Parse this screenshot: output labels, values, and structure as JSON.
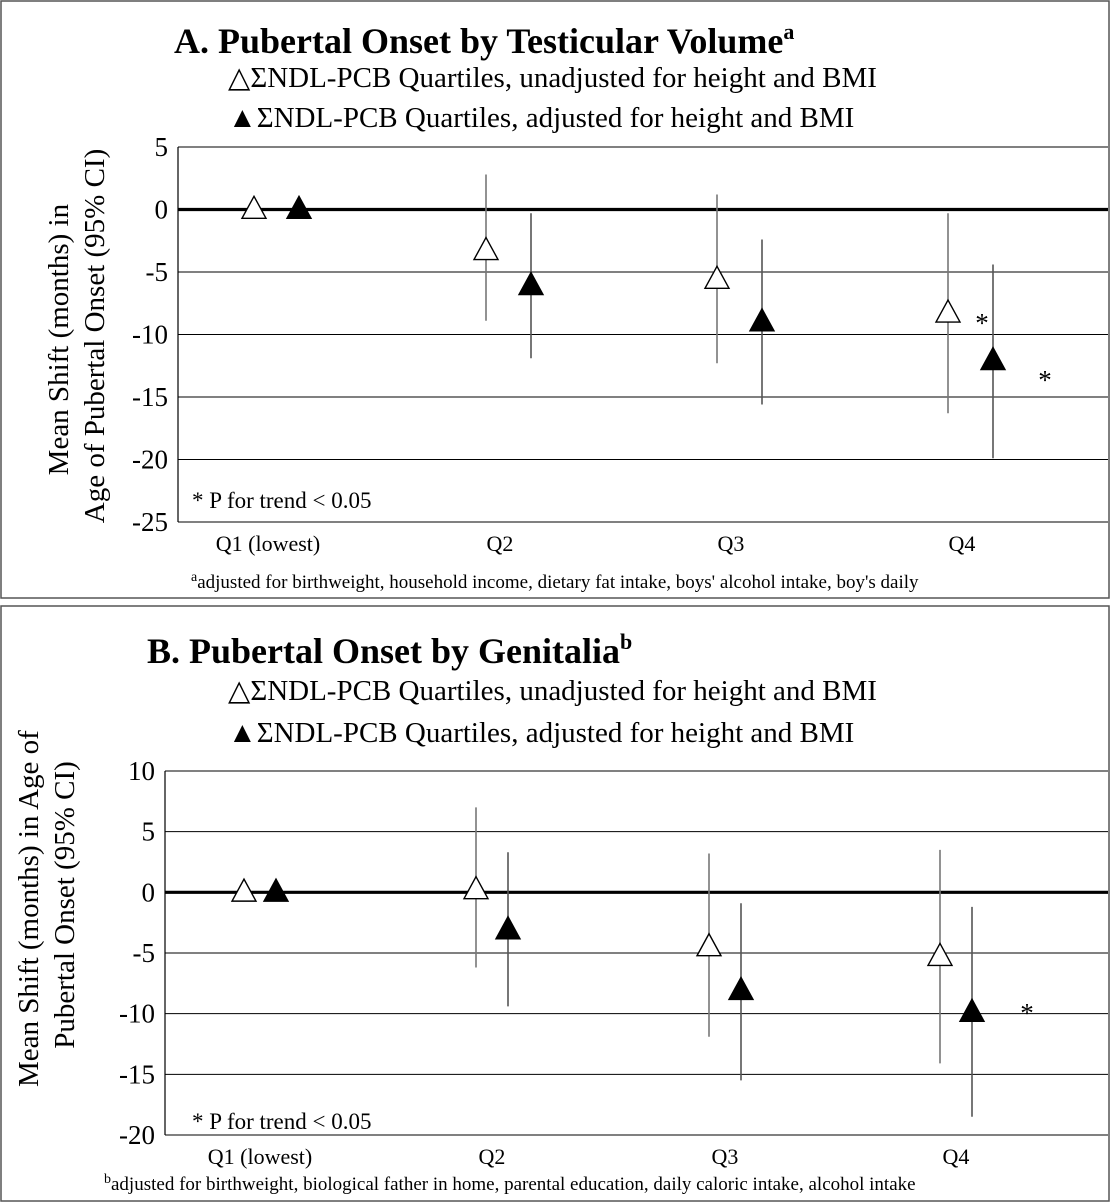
{
  "chart_data": [
    {
      "type": "scatter",
      "title": "A.  Pubertal Onset by Testicular Volume",
      "title_superscript": "a",
      "legend": [
        {
          "symbol": "△",
          "label": "ΣNDL-PCB Quartiles, unadjusted for height and BMI"
        },
        {
          "symbol": "▲",
          "label": "ΣNDL-PCB Quartiles, adjusted for height and BMI"
        }
      ],
      "ylabel_lines": [
        "Mean Shift (months) in",
        "Age of Pubertal Onset (95% CI)"
      ],
      "ylim": [
        -25,
        5
      ],
      "yticks": [
        5,
        0,
        -5,
        -10,
        -15,
        -20,
        -25
      ],
      "categories": [
        "Q1 (lowest)",
        "Q2",
        "Q3",
        "Q4"
      ],
      "series": [
        {
          "name": "ΣNDL-PCB Quartiles, unadjusted for height and BMI",
          "color": "#ffffff",
          "values": [
            0,
            -3.3,
            -5.6,
            -8.3
          ],
          "ci_low": [
            0,
            -8.9,
            -12.3,
            -16.3
          ],
          "ci_high": [
            0,
            2.8,
            1.2,
            -0.3
          ]
        },
        {
          "name": "ΣNDL-PCB Quartiles, adjusted for height and BMI",
          "color": "#000000",
          "values": [
            0,
            -6.1,
            -9.0,
            -12.1
          ],
          "ci_low": [
            0,
            -11.9,
            -15.6,
            -19.9
          ],
          "ci_high": [
            0,
            -0.3,
            -2.4,
            -4.4
          ]
        }
      ],
      "significance_marks": [
        {
          "category": "Q4",
          "series": 0,
          "text": "*"
        },
        {
          "category": "Q4",
          "series": 1,
          "text": "*"
        }
      ],
      "annotation": "* P for trend < 0.05",
      "footnote_superscript": "a",
      "footnote": "adjusted for birthweight, household income, dietary fat intake, boys' alcohol intake, boy's daily"
    },
    {
      "type": "scatter",
      "title": "B. Pubertal Onset by Genitalia",
      "title_superscript": "b",
      "legend": [
        {
          "symbol": "△",
          "label": "ΣNDL-PCB Quartiles, unadjusted for height and BMI"
        },
        {
          "symbol": "▲",
          "label": "ΣNDL-PCB Quartiles, adjusted for height and BMI"
        }
      ],
      "ylabel_lines": [
        "Mean Shift (months) in Age of",
        "Pubertal Onset (95% CI)"
      ],
      "ylim": [
        -20,
        10
      ],
      "yticks": [
        10,
        5,
        0,
        -5,
        -10,
        -15,
        -20
      ],
      "categories": [
        "Q1 (lowest)",
        "Q2",
        "Q3",
        "Q4"
      ],
      "series": [
        {
          "name": "ΣNDL-PCB Quartiles, unadjusted for height and BMI",
          "color": "#ffffff",
          "values": [
            0,
            0.2,
            -4.5,
            -5.3
          ],
          "ci_low": [
            0,
            -6.2,
            -11.9,
            -14.1
          ],
          "ci_high": [
            0,
            7.0,
            3.2,
            3.5
          ]
        },
        {
          "name": "ΣNDL-PCB Quartiles, adjusted for height and BMI",
          "color": "#000000",
          "values": [
            0,
            -3.1,
            -8.1,
            -9.9
          ],
          "ci_low": [
            0,
            -9.4,
            -15.5,
            -18.5
          ],
          "ci_high": [
            0,
            3.3,
            -0.9,
            -1.2
          ]
        }
      ],
      "significance_marks": [
        {
          "category": "Q4",
          "series": 1,
          "text": "*"
        }
      ],
      "annotation": "* P for trend < 0.05",
      "footnote_superscript": "b",
      "footnote": "adjusted for birthweight, biological father in home, parental education, daily caloric intake, alcohol intake"
    }
  ]
}
